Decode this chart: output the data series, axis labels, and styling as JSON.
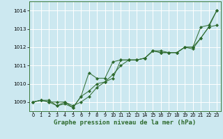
{
  "title": "Graphe pression niveau de la mer (hPa)",
  "bg_color": "#cce8f0",
  "grid_color": "#ffffff",
  "line_color": "#2d6a2d",
  "marker_color": "#2d6a2d",
  "xlim": [
    -0.5,
    23.5
  ],
  "ylim": [
    1008.5,
    1014.5
  ],
  "yticks": [
    1009,
    1010,
    1011,
    1012,
    1013,
    1014
  ],
  "xticks": [
    0,
    1,
    2,
    3,
    4,
    5,
    6,
    7,
    8,
    9,
    10,
    11,
    12,
    13,
    14,
    15,
    16,
    17,
    18,
    19,
    20,
    21,
    22,
    23
  ],
  "series1": [
    1009.0,
    1009.1,
    1009.0,
    1009.0,
    1009.0,
    1008.8,
    1009.0,
    1009.3,
    1009.8,
    1010.1,
    1010.3,
    1011.3,
    1011.3,
    1011.3,
    1011.4,
    1011.8,
    1011.8,
    1011.7,
    1011.7,
    1012.0,
    1012.0,
    1013.1,
    1013.2,
    1014.0
  ],
  "series2": [
    1009.0,
    1009.1,
    1009.1,
    1008.8,
    1009.0,
    1008.7,
    1009.3,
    1009.6,
    1010.0,
    1010.1,
    1010.5,
    1011.0,
    1011.3,
    1011.3,
    1011.4,
    1011.8,
    1011.7,
    1011.7,
    1011.7,
    1012.0,
    1011.9,
    1012.5,
    1013.1,
    1013.2
  ],
  "series3": [
    1009.0,
    1009.1,
    1009.0,
    1008.8,
    1008.9,
    1008.7,
    1009.3,
    1010.6,
    1010.3,
    1010.3,
    1011.2,
    1011.3,
    1011.3,
    1011.3,
    1011.4,
    1011.8,
    1011.7,
    1011.7,
    1011.7,
    1012.0,
    1012.0,
    1012.5,
    1013.1,
    1014.0
  ],
  "xlabel_fontsize": 6.5,
  "tick_fontsize": 4.8,
  "ytick_fontsize": 5.2
}
